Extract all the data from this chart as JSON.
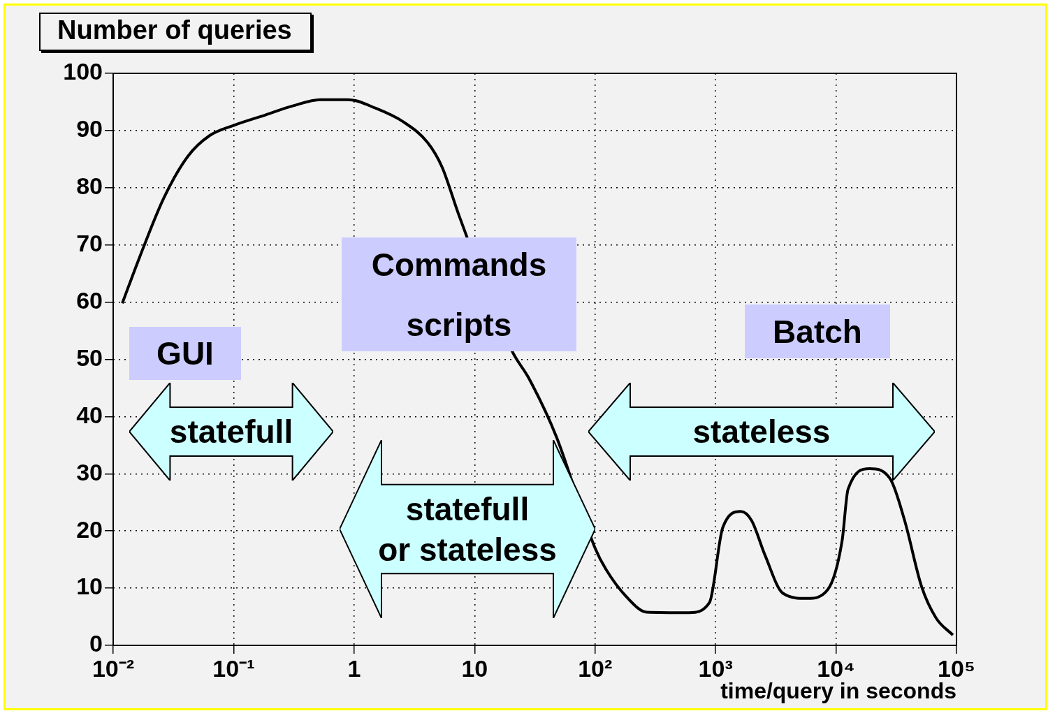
{
  "chart_data": {
    "type": "line",
    "title": "Number of queries",
    "xlabel": "time/query in seconds",
    "log": "x",
    "x": [
      0.0119,
      0.0166,
      0.0263,
      0.0417,
      0.063,
      0.1,
      0.182,
      0.309,
      0.525,
      0.89,
      1.51,
      2.57,
      4.07,
      5.37,
      7.41,
      20.4,
      28.2,
      47.9,
      100,
      123,
      182,
      269,
      603,
      891,
      1148,
      1622,
      1995,
      2570,
      3631,
      5754,
      8511,
      11220,
      12590,
      19050,
      28180,
      37150,
      51290,
      67610,
      93330
    ],
    "series": [
      {
        "color": "#000000",
        "values": [
          59.8,
          67.9,
          78.2,
          85.5,
          89.1,
          90.9,
          92.7,
          94.3,
          95.4,
          95.4,
          93.9,
          91.5,
          87.9,
          83.6,
          75.2,
          51.5,
          46.7,
          36.4,
          17,
          13.3,
          8.5,
          5.8,
          5.7,
          7.5,
          20.6,
          23.4,
          21.8,
          15.8,
          9.1,
          8.2,
          9.7,
          18.2,
          27.3,
          30.9,
          29.1,
          21.8,
          10.3,
          4.8,
          1.8
        ]
      }
    ],
    "xlim": [
      0.01,
      100000
    ],
    "xticks": [
      {
        "value": 0.01,
        "label": "10⁻²"
      },
      {
        "value": 0.1,
        "label": "10⁻¹"
      },
      1,
      10,
      {
        "value": 100,
        "label": "10²"
      },
      {
        "value": 1000,
        "label": "10³"
      },
      {
        "value": 10000,
        "label": "10⁴"
      },
      {
        "value": 100000,
        "label": "10⁵"
      }
    ],
    "ylim": [
      0,
      100
    ],
    "yticks": [
      0,
      10,
      20,
      30,
      40,
      50,
      60,
      70,
      80,
      90,
      100
    ],
    "grid": true,
    "legend": false,
    "marker": "none",
    "line_style": "solid",
    "annotations": [
      "GUI",
      "Commands\nscripts",
      "Batch",
      "statefull",
      "statefull\nor stateless",
      "stateless"
    ]
  }
}
